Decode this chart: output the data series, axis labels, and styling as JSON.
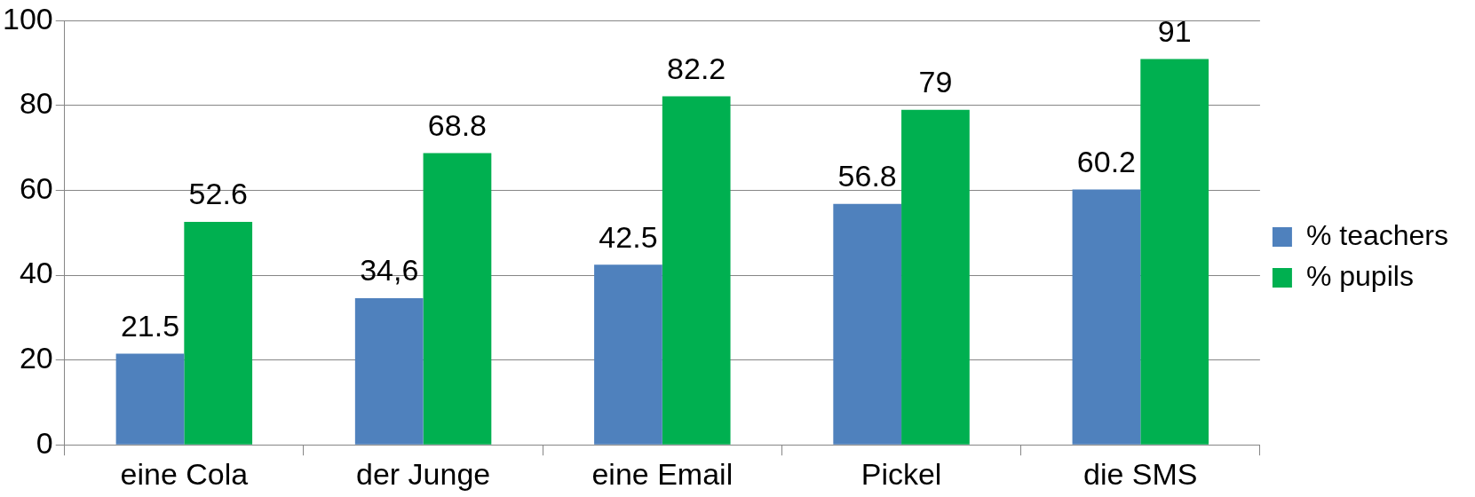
{
  "chart_data": {
    "type": "bar",
    "categories": [
      "eine Cola",
      "der Junge",
      "eine Email",
      "Pickel",
      "die SMS"
    ],
    "series": [
      {
        "name": "% teachers",
        "color": "#4f81bd",
        "values": [
          21.5,
          34.6,
          42.5,
          56.8,
          60.2
        ],
        "value_labels": [
          "21.5",
          "34,6",
          "42.5",
          "56.8",
          "60.2"
        ]
      },
      {
        "name": "% pupils",
        "color": "#00b050",
        "values": [
          52.6,
          68.8,
          82.2,
          79,
          91
        ],
        "value_labels": [
          "52.6",
          "68.8",
          "82.2",
          "79",
          "91"
        ]
      }
    ],
    "ylim": [
      0,
      100
    ],
    "yticks": [
      0,
      20,
      40,
      60,
      80,
      100
    ],
    "grid": "y",
    "legend": "right"
  }
}
